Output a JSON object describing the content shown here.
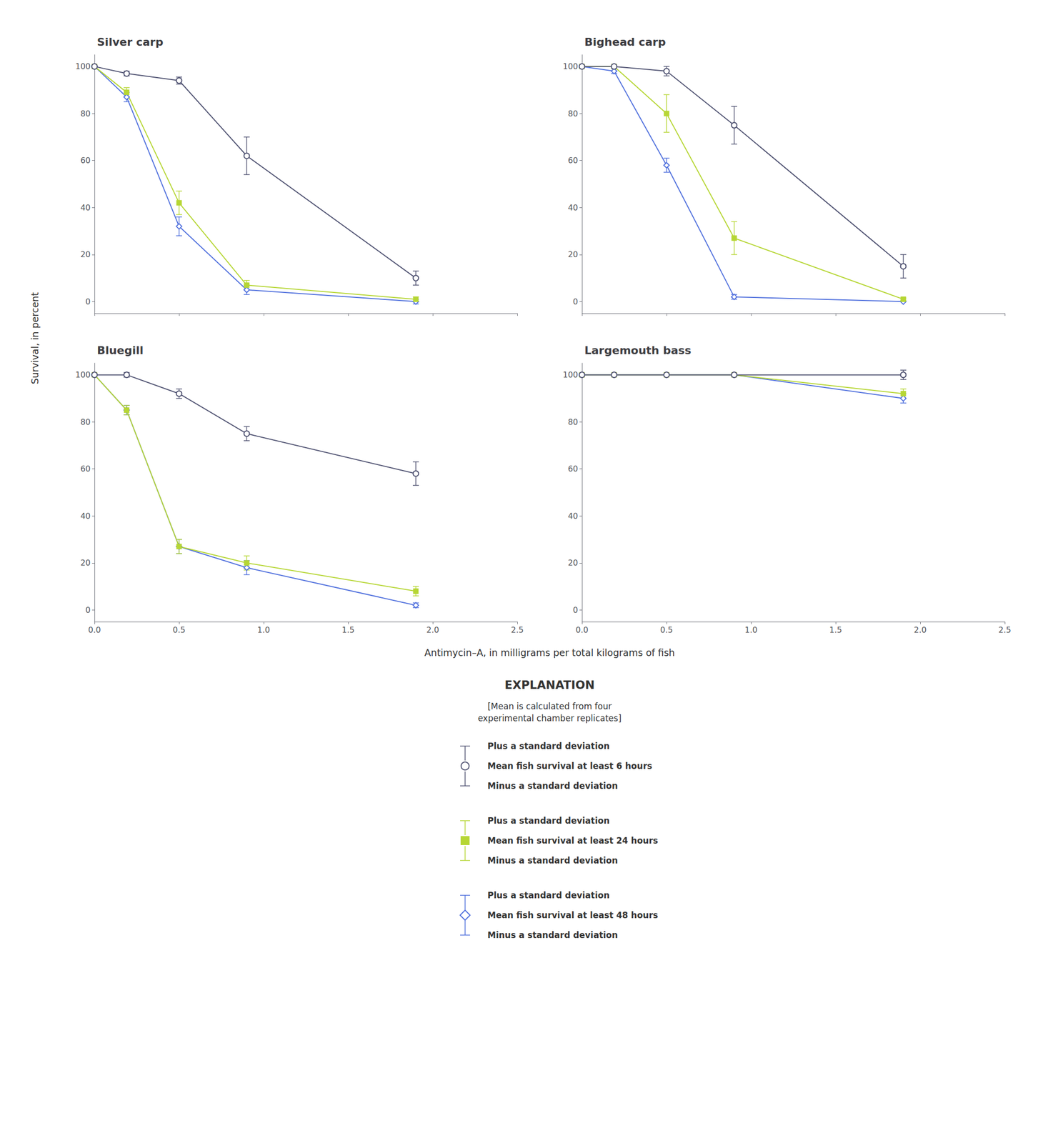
{
  "chart_data": {
    "type": "line",
    "xlabel": "Antimycin–A, in milligrams per total kilograms of fish",
    "ylabel": "Survival, in percent",
    "xlim": [
      0,
      2.5
    ],
    "ylim": [
      -5,
      105
    ],
    "xticks": [
      {
        "value": 0,
        "label": "0.0"
      },
      0.5,
      {
        "value": 1.0,
        "label": "1.0"
      },
      1.5,
      {
        "value": 2.0,
        "label": "2.0"
      },
      2.5
    ],
    "yticks": [
      0,
      20,
      40,
      60,
      80,
      100
    ],
    "grid": false,
    "subplots": [
      {
        "title": "Silver carp",
        "tick_labels": "y",
        "x": [
          0,
          0.19,
          0.5,
          0.9,
          1.9
        ],
        "series": [
          {
            "name": "Mean fish survival at least 48 hours",
            "marker": "open_diamond",
            "values": [
              100,
              87,
              32,
              5,
              0
            ],
            "errors": [
              0,
              2,
              4,
              2,
              1
            ]
          },
          {
            "name": "Mean fish survival at least 24 hours",
            "marker": "filled_square",
            "values": [
              100,
              89,
              42,
              7,
              1
            ],
            "errors": [
              0,
              2,
              5,
              2,
              1
            ]
          },
          {
            "name": "Mean fish survival at least 6 hours",
            "marker": "open_circle",
            "values": [
              100,
              97,
              94,
              62,
              10
            ],
            "errors": [
              0,
              1,
              1.5,
              8,
              3
            ]
          }
        ]
      },
      {
        "title": "Bighead carp",
        "tick_labels": "y",
        "x": [
          0,
          0.19,
          0.5,
          0.9,
          1.9
        ],
        "series": [
          {
            "name": "Mean fish survival at least 48 hours",
            "marker": "open_diamond",
            "values": [
              100,
              98,
              58,
              2,
              0
            ],
            "errors": [
              0,
              1,
              3,
              1,
              0
            ]
          },
          {
            "name": "Mean fish survival at least 24 hours",
            "marker": "filled_square",
            "values": [
              100,
              100,
              80,
              27,
              1
            ],
            "errors": [
              0,
              0,
              8,
              7,
              0.5
            ]
          },
          {
            "name": "Mean fish survival at least 6 hours",
            "marker": "open_circle",
            "values": [
              100,
              100,
              98,
              75,
              15
            ],
            "errors": [
              0,
              0,
              2,
              8,
              5
            ]
          }
        ]
      },
      {
        "title": "Bluegill",
        "x": [
          0,
          0.19,
          0.5,
          0.9,
          1.9
        ],
        "series": [
          {
            "name": "Mean fish survival at least 48 hours",
            "marker": "open_diamond",
            "values": [
              100,
              85,
              27,
              18,
              2
            ],
            "errors": [
              0,
              2,
              3,
              3,
              1
            ]
          },
          {
            "name": "Mean fish survival at least 24 hours",
            "marker": "filled_square",
            "values": [
              100,
              85,
              27,
              20,
              8
            ],
            "errors": [
              0,
              2,
              3,
              3,
              2
            ]
          },
          {
            "name": "Mean fish survival at least 6 hours",
            "marker": "open_circle",
            "values": [
              100,
              100,
              92,
              75,
              58
            ],
            "errors": [
              0,
              1,
              2,
              3,
              5
            ]
          }
        ]
      },
      {
        "title": "Largemouth bass",
        "x": [
          0,
          0.19,
          0.5,
          0.9,
          1.9
        ],
        "series": [
          {
            "name": "Mean fish survival at least 48 hours",
            "marker": "open_diamond",
            "values": [
              100,
              100,
              100,
              100,
              90
            ],
            "errors": [
              0,
              0,
              0,
              0,
              2
            ]
          },
          {
            "name": "Mean fish survival at least 24 hours",
            "marker": "filled_square",
            "values": [
              100,
              100,
              100,
              100,
              92
            ],
            "errors": [
              0,
              0,
              0,
              0,
              2
            ]
          },
          {
            "name": "Mean fish survival at least 6 hours",
            "marker": "open_circle",
            "values": [
              100,
              100,
              100,
              100,
              100
            ],
            "errors": [
              0,
              0,
              0,
              0,
              2
            ]
          }
        ]
      }
    ],
    "explanation": {
      "title": "EXPLANATION",
      "subtitle": "[Mean is calculated from four\nexperimental chamber replicates]",
      "entries": [
        {
          "plus_label": "Plus a standard deviation",
          "name": "Mean fish survival at least 6 hours",
          "minus_label": "Minus a standard deviation",
          "marker": "open_circle"
        },
        {
          "plus_label": "Plus a standard deviation",
          "name": "Mean fish survival at least 24 hours",
          "minus_label": "Minus a standard deviation",
          "marker": "filled_square"
        },
        {
          "plus_label": "Plus a standard deviation",
          "name": "Mean fish survival at least 48 hours",
          "minus_label": "Minus a standard deviation",
          "marker": "open_diamond"
        }
      ]
    }
  }
}
